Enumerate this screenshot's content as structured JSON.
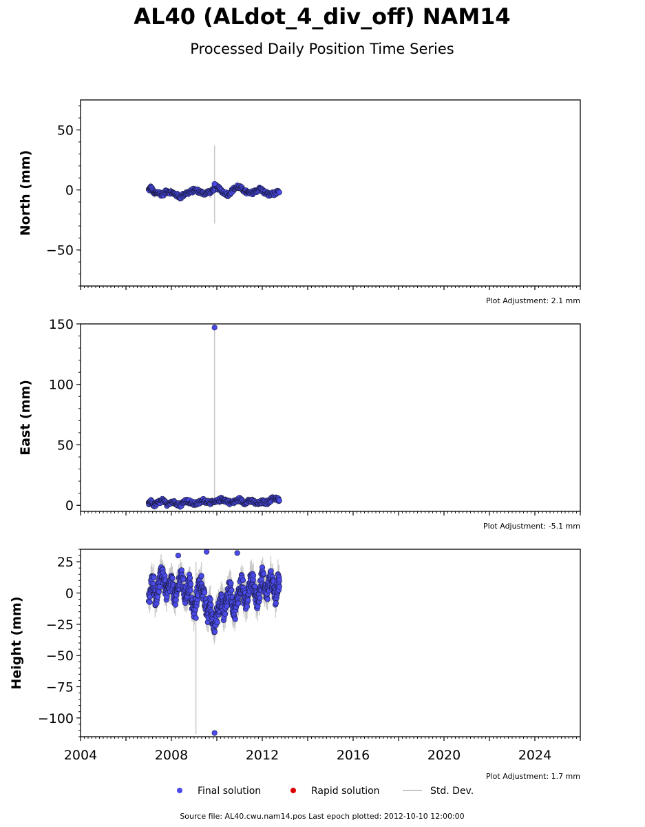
{
  "title": "AL40 (ALdot_4_div_off) NAM14",
  "subtitle": "Processed Daily Position Time Series",
  "footer": "Source file: AL40.cwu.nam14.pos  Last epoch plotted: 2012-10-10 12:00:00",
  "legend": {
    "final_label": "Final solution",
    "rapid_label": "Rapid solution",
    "stddev_label": "Std. Dev."
  },
  "colors": {
    "final": "#4a4ae8",
    "final_edge": "#1a1a40",
    "rapid": "#dd0000",
    "stddev": "#c8c8c8"
  },
  "x_axis": {
    "ticks": [
      "2004",
      "2008",
      "2012",
      "2016",
      "2020",
      "2024"
    ],
    "range": [
      2004.0,
      2026.0
    ]
  },
  "chart_data": [
    {
      "type": "scatter",
      "ylabel": "North (mm)",
      "adjustment": "Plot Adjustment: 2.1 mm",
      "ylim": [
        -80,
        75
      ],
      "yticks": [
        "50",
        "0",
        "−50"
      ],
      "ytick_values": [
        50,
        0,
        -50
      ],
      "minor_step": 10,
      "grid": false,
      "series": [
        {
          "x": [
            2007.0,
            2007.1,
            2007.25,
            2007.4,
            2007.6,
            2007.8,
            2008.0,
            2008.2,
            2008.4,
            2008.6,
            2008.8,
            2009.0,
            2009.2,
            2009.4,
            2009.6,
            2009.8,
            2009.95,
            2010.1,
            2010.3,
            2010.5,
            2010.7,
            2010.9,
            2011.1,
            2011.3,
            2011.5,
            2011.7,
            2011.9,
            2012.1,
            2012.3,
            2012.5,
            2012.75
          ],
          "y": [
            0,
            2,
            -3,
            -2,
            -4,
            -1,
            -2,
            -4,
            -6,
            -3,
            -2,
            0,
            -1,
            -3,
            -2,
            -1,
            3,
            1,
            -2,
            -4,
            0,
            3,
            1,
            -2,
            -3,
            -1,
            1,
            -2,
            -4,
            -3,
            -2
          ],
          "err": [
            3,
            3,
            3,
            3,
            3,
            3,
            3,
            3,
            3,
            3,
            3,
            3,
            3,
            3,
            3,
            3,
            3,
            3,
            3,
            3,
            3,
            3,
            3,
            3,
            3,
            3,
            3,
            3,
            3,
            3,
            3
          ]
        }
      ],
      "spike": {
        "x": 2009.9,
        "y": 5,
        "err_low": -28,
        "err_high": 37
      }
    },
    {
      "type": "scatter",
      "ylabel": "East (mm)",
      "adjustment": "Plot Adjustment: -5.1 mm",
      "ylim": [
        -5,
        150
      ],
      "yticks": [
        "150",
        "100",
        "50",
        "0"
      ],
      "ytick_values": [
        150,
        100,
        50,
        0
      ],
      "minor_step": 10,
      "grid": false,
      "series": [
        {
          "x": [
            2007.0,
            2007.1,
            2007.25,
            2007.4,
            2007.6,
            2007.8,
            2008.0,
            2008.2,
            2008.4,
            2008.6,
            2008.8,
            2009.0,
            2009.2,
            2009.4,
            2009.6,
            2009.8,
            2010.0,
            2010.2,
            2010.4,
            2010.6,
            2010.8,
            2011.0,
            2011.2,
            2011.4,
            2011.6,
            2011.8,
            2012.0,
            2012.2,
            2012.4,
            2012.6,
            2012.75
          ],
          "y": [
            1,
            3,
            0,
            2,
            4,
            1,
            3,
            2,
            0,
            4,
            3,
            1,
            2,
            4,
            3,
            2,
            3,
            5,
            4,
            2,
            3,
            5,
            2,
            4,
            3,
            1,
            3,
            2,
            5,
            6,
            4
          ],
          "err": [
            3,
            3,
            3,
            3,
            3,
            3,
            3,
            3,
            3,
            3,
            3,
            3,
            3,
            3,
            3,
            3,
            3,
            3,
            3,
            3,
            3,
            3,
            3,
            3,
            3,
            3,
            3,
            3,
            3,
            3,
            3
          ]
        }
      ],
      "spike": {
        "x": 2009.9,
        "y": 147,
        "err_low": 0,
        "err_high": 147
      }
    },
    {
      "type": "scatter",
      "ylabel": "Height (mm)",
      "adjustment": "Plot Adjustment: 1.7 mm",
      "ylim": [
        -115,
        35
      ],
      "yticks": [
        "25",
        "0",
        "−25",
        "−50",
        "−75",
        "−100"
      ],
      "ytick_values": [
        25,
        0,
        -25,
        -50,
        -75,
        -100
      ],
      "minor_step": 5,
      "grid": false,
      "series": [
        {
          "x": [
            2007.0,
            2007.1,
            2007.2,
            2007.3,
            2007.4,
            2007.5,
            2007.6,
            2007.7,
            2007.8,
            2007.9,
            2008.0,
            2008.1,
            2008.2,
            2008.3,
            2008.4,
            2008.5,
            2008.6,
            2008.7,
            2008.8,
            2008.9,
            2009.0,
            2009.1,
            2009.2,
            2009.3,
            2009.4,
            2009.5,
            2009.6,
            2009.7,
            2009.8,
            2009.9,
            2010.0,
            2010.1,
            2010.2,
            2010.3,
            2010.4,
            2010.5,
            2010.6,
            2010.7,
            2010.8,
            2010.9,
            2011.0,
            2011.1,
            2011.2,
            2011.3,
            2011.4,
            2011.5,
            2011.6,
            2011.7,
            2011.8,
            2011.9,
            2012.0,
            2012.1,
            2012.2,
            2012.3,
            2012.4,
            2012.5,
            2012.6,
            2012.7,
            2012.75
          ],
          "y": [
            -8,
            5,
            12,
            -5,
            2,
            10,
            18,
            8,
            -2,
            4,
            10,
            0,
            -5,
            5,
            15,
            8,
            -3,
            2,
            10,
            -8,
            -15,
            -5,
            5,
            10,
            0,
            -10,
            -18,
            -8,
            -20,
            -25,
            -18,
            -12,
            -5,
            -15,
            -8,
            0,
            5,
            -10,
            -15,
            -5,
            2,
            10,
            -3,
            -10,
            5,
            12,
            8,
            0,
            -8,
            3,
            15,
            5,
            -2,
            8,
            12,
            3,
            -5,
            10,
            5
          ],
          "err": [
            10,
            10,
            10,
            10,
            10,
            10,
            10,
            10,
            10,
            10,
            10,
            10,
            10,
            10,
            10,
            10,
            10,
            10,
            10,
            10,
            10,
            10,
            10,
            10,
            10,
            10,
            10,
            10,
            10,
            10,
            10,
            10,
            10,
            10,
            10,
            10,
            10,
            10,
            10,
            10,
            10,
            10,
            10,
            10,
            10,
            10,
            10,
            10,
            10,
            10,
            10,
            10,
            10,
            10,
            10,
            10,
            10,
            10,
            10
          ]
        }
      ],
      "outliers": [
        {
          "x": 2009.9,
          "y": -112
        },
        {
          "x": 2009.55,
          "y": 33
        },
        {
          "x": 2010.9,
          "y": 32
        },
        {
          "x": 2008.3,
          "y": 30
        }
      ],
      "spike": {
        "x": 2009.08,
        "y": -20,
        "err_low": -113,
        "err_high": 25
      }
    }
  ]
}
